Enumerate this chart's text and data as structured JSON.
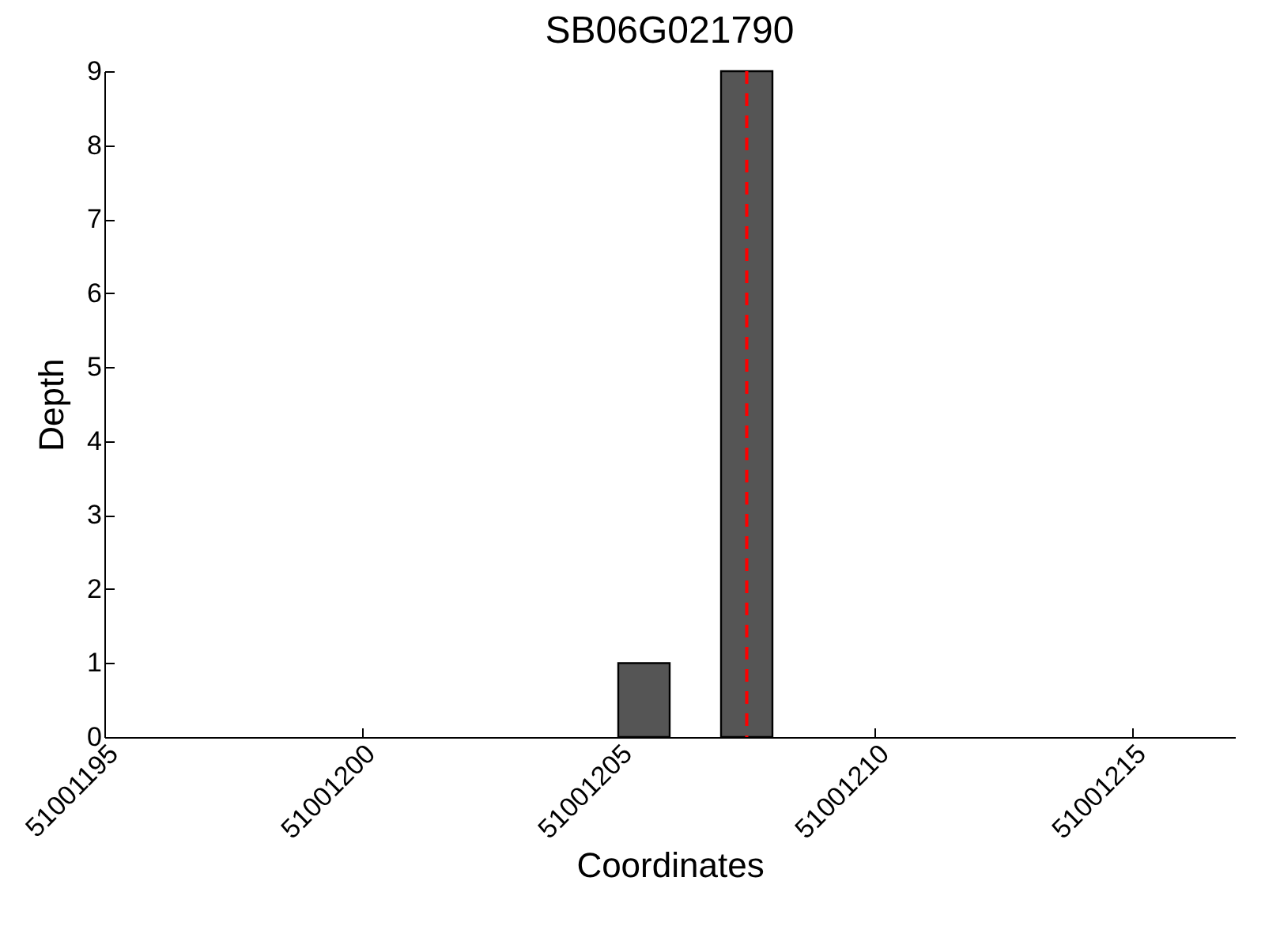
{
  "chart_data": {
    "type": "histogram",
    "title": "SB06G021790",
    "xlabel": "Coordinates",
    "ylabel": "Depth",
    "bins": [
      51001205,
      51001206,
      51001207,
      51001208
    ],
    "values": [
      1,
      0,
      9
    ],
    "color": "#555555",
    "xlim": [
      51001195,
      51001217
    ],
    "xticks": [
      51001195,
      51001200,
      51001205,
      51001210,
      51001215
    ],
    "ylim": [
      0,
      9
    ],
    "yticks": [
      0,
      1,
      2,
      3,
      4,
      5,
      6,
      7,
      8,
      9
    ],
    "grid": false,
    "ref_lines": [
      {
        "axis": "x",
        "value": 51001207.5,
        "color": "#ff0000",
        "line_style": "dashed"
      }
    ]
  }
}
